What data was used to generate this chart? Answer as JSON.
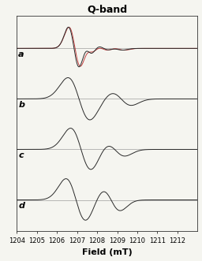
{
  "title": "Q-band",
  "xlabel": "Field (mT)",
  "xlim": [
    1204,
    1213
  ],
  "xticks": [
    1204,
    1205,
    1206,
    1207,
    1208,
    1209,
    1210,
    1211,
    1212
  ],
  "xtick_labels": [
    "1204",
    "1205",
    "1206",
    "1207",
    "1208",
    "1209",
    "1210",
    "1211",
    "1212"
  ],
  "labels": [
    "a",
    "b",
    "c",
    "d"
  ],
  "background_color": "#f5f5f0",
  "line_color_dark": "#2a2a2a",
  "line_color_red": "#c03030",
  "line_color_red2": "#d06060",
  "title_fontsize": 9,
  "label_fontsize": 8,
  "axis_label_fontsize": 8,
  "tick_fontsize": 6
}
